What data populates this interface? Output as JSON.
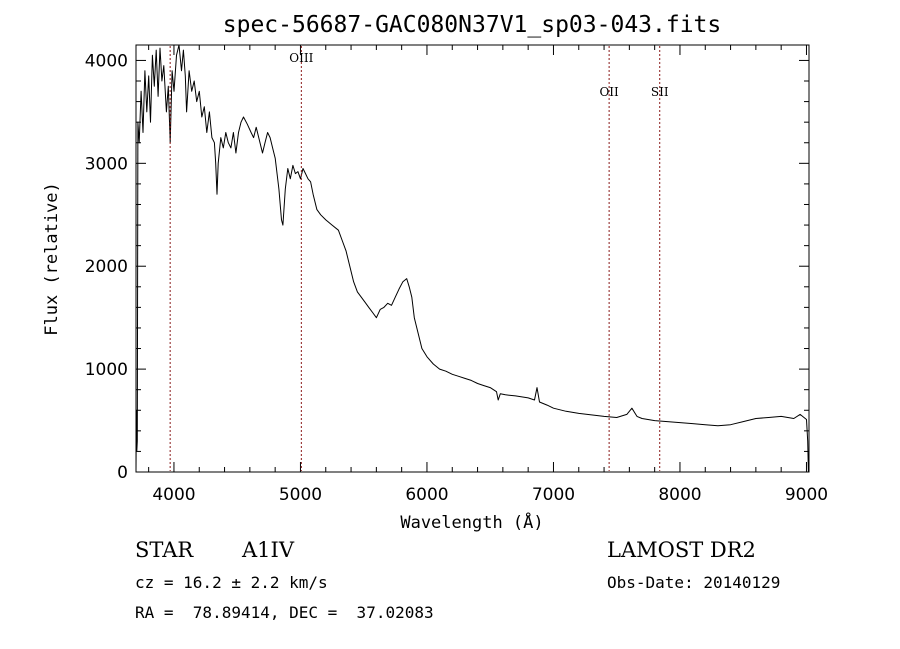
{
  "chart_data": {
    "type": "line",
    "title": "spec-56687-GAC080N37V1_sp03-043.fits",
    "xlabel": "Wavelength (Å)",
    "ylabel": "Flux (relative)",
    "xlim": [
      3700,
      9020
    ],
    "ylim": [
      0,
      4150
    ],
    "xticks": [
      4000,
      5000,
      6000,
      7000,
      8000,
      9000
    ],
    "yticks": [
      0,
      1000,
      2000,
      3000,
      4000
    ],
    "grid": false,
    "series": [
      {
        "points": [
          [
            3700,
            0
          ],
          [
            3703,
            600
          ],
          [
            3706,
            200
          ],
          [
            3710,
            300
          ],
          [
            3715,
            3400
          ],
          [
            3725,
            3200
          ],
          [
            3740,
            3700
          ],
          [
            3755,
            3300
          ],
          [
            3770,
            3900
          ],
          [
            3785,
            3500
          ],
          [
            3800,
            3850
          ],
          [
            3815,
            3400
          ],
          [
            3830,
            4050
          ],
          [
            3845,
            3750
          ],
          [
            3860,
            4100
          ],
          [
            3875,
            3650
          ],
          [
            3890,
            4120
          ],
          [
            3905,
            3800
          ],
          [
            3920,
            3950
          ],
          [
            3940,
            3500
          ],
          [
            3955,
            3750
          ],
          [
            3970,
            3200
          ],
          [
            3985,
            3900
          ],
          [
            4000,
            3700
          ],
          [
            4020,
            4050
          ],
          [
            4040,
            4150
          ],
          [
            4060,
            3900
          ],
          [
            4075,
            4100
          ],
          [
            4090,
            3850
          ],
          [
            4100,
            3500
          ],
          [
            4120,
            3900
          ],
          [
            4140,
            3700
          ],
          [
            4160,
            3800
          ],
          [
            4180,
            3600
          ],
          [
            4200,
            3700
          ],
          [
            4220,
            3450
          ],
          [
            4240,
            3550
          ],
          [
            4260,
            3300
          ],
          [
            4280,
            3500
          ],
          [
            4300,
            3250
          ],
          [
            4320,
            3200
          ],
          [
            4330,
            3000
          ],
          [
            4340,
            2700
          ],
          [
            4350,
            3000
          ],
          [
            4370,
            3250
          ],
          [
            4390,
            3150
          ],
          [
            4410,
            3300
          ],
          [
            4430,
            3200
          ],
          [
            4450,
            3150
          ],
          [
            4470,
            3300
          ],
          [
            4490,
            3100
          ],
          [
            4510,
            3300
          ],
          [
            4530,
            3400
          ],
          [
            4550,
            3450
          ],
          [
            4580,
            3380
          ],
          [
            4610,
            3300
          ],
          [
            4630,
            3250
          ],
          [
            4650,
            3350
          ],
          [
            4680,
            3200
          ],
          [
            4700,
            3100
          ],
          [
            4720,
            3200
          ],
          [
            4740,
            3300
          ],
          [
            4760,
            3250
          ],
          [
            4780,
            3150
          ],
          [
            4800,
            3050
          ],
          [
            4830,
            2750
          ],
          [
            4850,
            2450
          ],
          [
            4861,
            2400
          ],
          [
            4880,
            2750
          ],
          [
            4900,
            2950
          ],
          [
            4920,
            2850
          ],
          [
            4940,
            2980
          ],
          [
            4960,
            2900
          ],
          [
            4980,
            2920
          ],
          [
            5000,
            2850
          ],
          [
            5020,
            2950
          ],
          [
            5040,
            2900
          ],
          [
            5060,
            2850
          ],
          [
            5080,
            2820
          ],
          [
            5100,
            2700
          ],
          [
            5130,
            2550
          ],
          [
            5160,
            2500
          ],
          [
            5200,
            2450
          ],
          [
            5250,
            2400
          ],
          [
            5300,
            2350
          ],
          [
            5330,
            2250
          ],
          [
            5360,
            2150
          ],
          [
            5390,
            2000
          ],
          [
            5420,
            1850
          ],
          [
            5450,
            1750
          ],
          [
            5480,
            1700
          ],
          [
            5510,
            1650
          ],
          [
            5540,
            1600
          ],
          [
            5570,
            1550
          ],
          [
            5600,
            1500
          ],
          [
            5630,
            1580
          ],
          [
            5660,
            1600
          ],
          [
            5690,
            1640
          ],
          [
            5720,
            1620
          ],
          [
            5750,
            1700
          ],
          [
            5780,
            1780
          ],
          [
            5810,
            1850
          ],
          [
            5840,
            1880
          ],
          [
            5860,
            1800
          ],
          [
            5880,
            1700
          ],
          [
            5900,
            1500
          ],
          [
            5930,
            1350
          ],
          [
            5960,
            1200
          ],
          [
            6000,
            1120
          ],
          [
            6050,
            1050
          ],
          [
            6100,
            1000
          ],
          [
            6150,
            980
          ],
          [
            6200,
            950
          ],
          [
            6250,
            930
          ],
          [
            6300,
            910
          ],
          [
            6350,
            890
          ],
          [
            6400,
            860
          ],
          [
            6450,
            840
          ],
          [
            6500,
            820
          ],
          [
            6550,
            780
          ],
          [
            6563,
            700
          ],
          [
            6580,
            760
          ],
          [
            6620,
            750
          ],
          [
            6700,
            740
          ],
          [
            6800,
            720
          ],
          [
            6850,
            700
          ],
          [
            6870,
            820
          ],
          [
            6890,
            680
          ],
          [
            6950,
            650
          ],
          [
            7000,
            620
          ],
          [
            7100,
            590
          ],
          [
            7200,
            570
          ],
          [
            7300,
            555
          ],
          [
            7400,
            540
          ],
          [
            7500,
            530
          ],
          [
            7580,
            560
          ],
          [
            7620,
            620
          ],
          [
            7660,
            540
          ],
          [
            7700,
            520
          ],
          [
            7800,
            500
          ],
          [
            7900,
            490
          ],
          [
            8000,
            480
          ],
          [
            8100,
            470
          ],
          [
            8200,
            460
          ],
          [
            8300,
            450
          ],
          [
            8400,
            460
          ],
          [
            8500,
            490
          ],
          [
            8600,
            520
          ],
          [
            8700,
            530
          ],
          [
            8800,
            540
          ],
          [
            8900,
            520
          ],
          [
            8950,
            560
          ],
          [
            9000,
            510
          ],
          [
            9010,
            300
          ],
          [
            9015,
            0
          ]
        ]
      }
    ],
    "lines": [
      {
        "x": 3970,
        "label": ""
      },
      {
        "x": 5007,
        "label": "OIII"
      },
      {
        "x": 7440,
        "label": "OII"
      },
      {
        "x": 7840,
        "label": "SII"
      }
    ],
    "line_color": "#8b1a1a"
  },
  "info": {
    "object_type": "STAR",
    "subclass": "A1IV",
    "survey": "LAMOST DR2",
    "cz": "cz = 16.2 ± 2.2 km/s",
    "obs_date": "Obs-Date: 20140129",
    "coords": "RA =  78.89414, DEC =  37.02083"
  }
}
